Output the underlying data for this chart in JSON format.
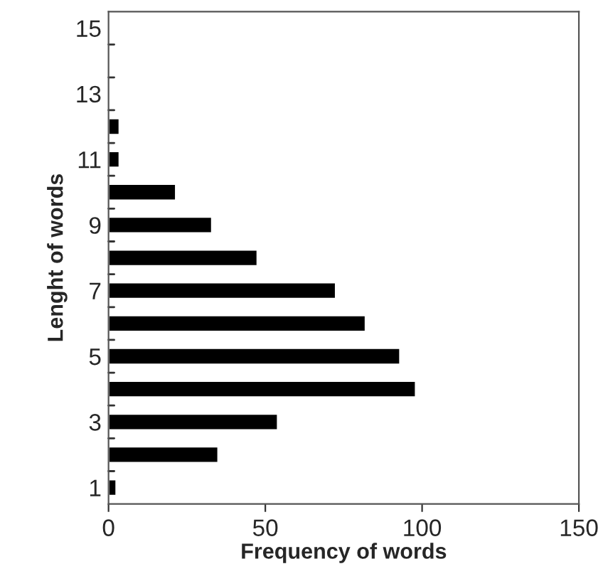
{
  "chart_data": {
    "type": "bar",
    "orientation": "horizontal",
    "xlabel": "Frequency of words",
    "ylabel": "Lenght of words",
    "categories": [
      "15",
      null,
      "13",
      null,
      "11",
      null,
      "9",
      null,
      "7",
      null,
      "5",
      null,
      "3",
      null,
      "1"
    ],
    "values": [
      null,
      null,
      null,
      3.5,
      3.5,
      21.5,
      33,
      47.5,
      72.5,
      82,
      93,
      98,
      54,
      35,
      2.5
    ],
    "color": "#000000",
    "xlim": [
      0,
      150
    ],
    "xticks": [
      0,
      50,
      100,
      150
    ],
    "grid": false,
    "legend": false
  }
}
